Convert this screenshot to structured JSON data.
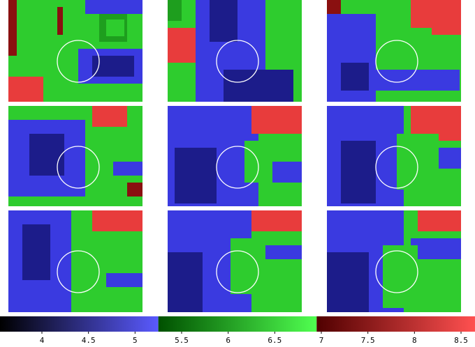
{
  "chart_data": {
    "type": "colorbar",
    "xlim": [
      3.55,
      8.65
    ],
    "xticks": [
      4,
      4.5,
      5,
      5.5,
      6,
      6.5,
      7,
      7.5,
      8,
      8.5
    ],
    "segments": [
      {
        "from": 3.55,
        "to": 5.25,
        "colors": [
          "#000000",
          "#5a5aff"
        ]
      },
      {
        "from": 5.25,
        "to": 6.95,
        "colors": [
          "#005000",
          "#50ff50"
        ]
      },
      {
        "from": 6.95,
        "to": 8.65,
        "colors": [
          "#500000",
          "#ff5050"
        ]
      }
    ]
  }
}
